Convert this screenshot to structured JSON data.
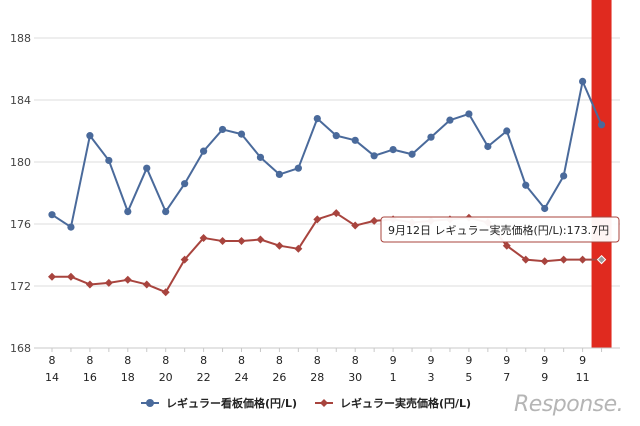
{
  "chart_data": {
    "type": "line",
    "x_labels": [
      [
        "8",
        "14"
      ],
      [
        "8",
        ""
      ],
      [
        "8",
        "16"
      ],
      [
        "8",
        ""
      ],
      [
        "8",
        "18"
      ],
      [
        "8",
        ""
      ],
      [
        "8",
        "20"
      ],
      [
        "8",
        ""
      ],
      [
        "8",
        "22"
      ],
      [
        "8",
        ""
      ],
      [
        "8",
        "24"
      ],
      [
        "8",
        ""
      ],
      [
        "8",
        "26"
      ],
      [
        "8",
        ""
      ],
      [
        "8",
        "28"
      ],
      [
        "8",
        ""
      ],
      [
        "8",
        "30"
      ],
      [
        "8",
        ""
      ],
      [
        "9",
        "1"
      ],
      [
        "9",
        ""
      ],
      [
        "9",
        "3"
      ],
      [
        "9",
        ""
      ],
      [
        "9",
        "5"
      ],
      [
        "9",
        ""
      ],
      [
        "9",
        "7"
      ],
      [
        "9",
        ""
      ],
      [
        "9",
        "9"
      ],
      [
        "9",
        ""
      ],
      [
        "9",
        "11"
      ],
      [
        "9",
        ""
      ]
    ],
    "yticks": [
      168,
      172,
      176,
      180,
      184,
      188
    ],
    "ylim": [
      168,
      188
    ],
    "series": [
      {
        "name": "レギュラー看板価格(円/L)",
        "color": "#4a6a9b",
        "marker": "circle",
        "values": [
          176.6,
          175.8,
          181.7,
          180.1,
          176.8,
          179.6,
          176.8,
          178.6,
          180.7,
          182.1,
          181.8,
          180.3,
          179.2,
          179.6,
          182.8,
          181.7,
          181.4,
          180.4,
          180.8,
          180.5,
          181.6,
          182.7,
          183.1,
          181.0,
          182.0,
          178.5,
          177.0,
          179.1,
          185.2,
          182.4
        ]
      },
      {
        "name": "レギュラー実売価格(円/L)",
        "color": "#a8443e",
        "marker": "diamond",
        "values": [
          172.6,
          172.6,
          172.1,
          172.2,
          172.4,
          172.1,
          171.6,
          173.7,
          175.1,
          174.9,
          174.9,
          175.0,
          174.6,
          174.4,
          176.3,
          176.7,
          175.9,
          176.2,
          176.3,
          176.1,
          176.2,
          176.3,
          176.4,
          176.1,
          174.6,
          173.7,
          173.6,
          173.7,
          173.7,
          173.7
        ]
      }
    ]
  },
  "highlight": {
    "index": 29,
    "color": "#e02a1f"
  },
  "tooltip": {
    "text": "9月12日  レギュラー実売価格(円/L):173.7円"
  },
  "branding": {
    "logo_text": "Response."
  }
}
